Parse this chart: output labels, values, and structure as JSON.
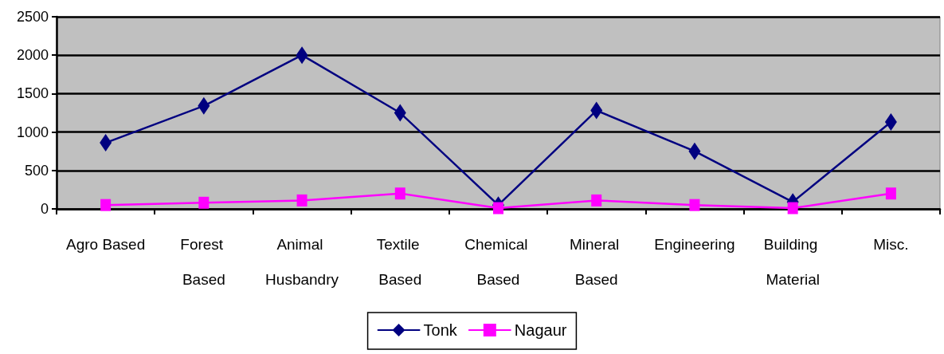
{
  "chart_data": {
    "type": "line",
    "categories": [
      "Agro Based",
      "Forest Based",
      "Animal Husbandry",
      "Textile Based",
      "Chemical Based",
      "Mineral Based",
      "Engineering",
      "Building Material",
      "Misc."
    ],
    "series": [
      {
        "name": "Tonk",
        "color": "#000080",
        "marker": "diamond",
        "values": [
          860,
          1340,
          2000,
          1250,
          50,
          1280,
          750,
          90,
          1130
        ]
      },
      {
        "name": "Nagaur",
        "color": "#ff00ff",
        "marker": "square",
        "values": [
          50,
          80,
          110,
          200,
          10,
          110,
          50,
          10,
          200
        ]
      }
    ],
    "ylim": [
      0,
      2500
    ],
    "yticks": [
      0,
      500,
      1000,
      1500,
      2000,
      2500
    ],
    "grid": "y",
    "legend": "bottom"
  }
}
